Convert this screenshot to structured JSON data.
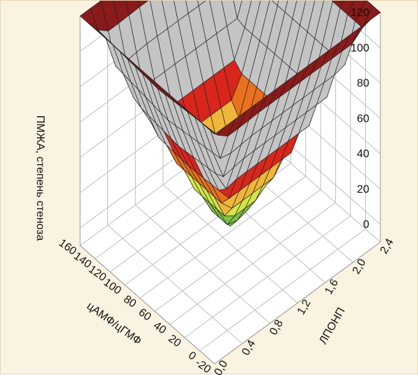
{
  "chart_data": {
    "type": "surface3d",
    "title": "",
    "zlabel": "ПМЖА, степень стеноза",
    "xlabel": "цАМФ/цГМФ",
    "ylabel": "ЛПОНП",
    "x_ticks": [
      "160",
      "140",
      "120",
      "100",
      "80",
      "60",
      "40",
      "20",
      "0",
      "-20"
    ],
    "y_ticks": [
      "0,0",
      "0,4",
      "0,8",
      "1,2",
      "1,6",
      "2,0",
      "2,4"
    ],
    "z_ticks": [
      "0",
      "20",
      "40",
      "60",
      "80",
      "100",
      "120"
    ],
    "xlim": [
      -20,
      160
    ],
    "ylim": [
      0,
      2.4
    ],
    "zlim": [
      -10,
      120
    ],
    "grid": true,
    "surface": {
      "description_levels_color": [
        {
          "min": -10,
          "max": 20,
          "color": "#7bc142"
        },
        {
          "min": 20,
          "max": 30,
          "color": "#d4e34a"
        },
        {
          "min": 30,
          "max": 40,
          "color": "#f0b63b"
        },
        {
          "min": 40,
          "max": 50,
          "color": "#e8701f"
        },
        {
          "min": 50,
          "max": 60,
          "color": "#d9261c"
        },
        {
          "min": 60,
          "max": 110,
          "color": "#c4c4c4"
        },
        {
          "min": 110,
          "max": 130,
          "color": "#8b1a1a"
        }
      ],
      "trough_level_color": "#2e6e47"
    }
  }
}
